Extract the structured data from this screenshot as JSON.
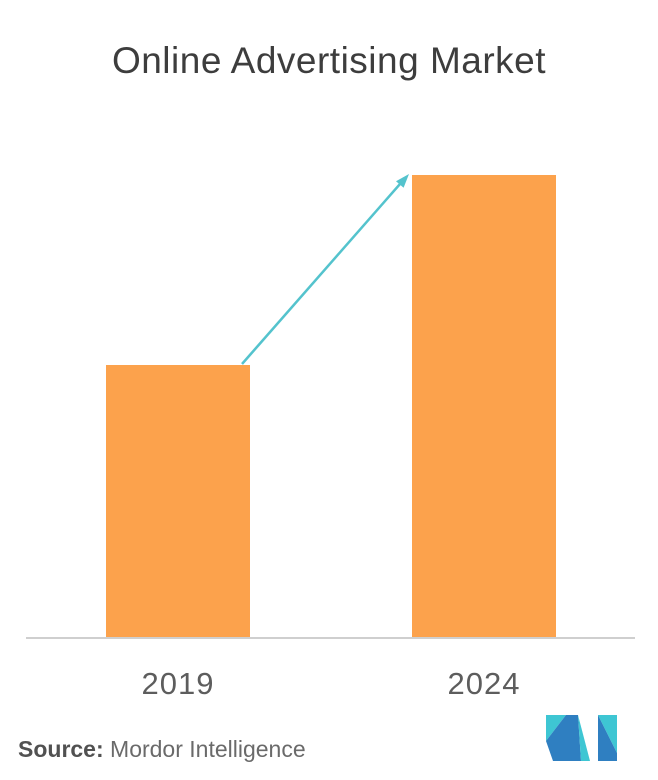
{
  "title": "Online Advertising Market",
  "source": {
    "label": "Source:",
    "text": " Mordor Intelligence"
  },
  "colors": {
    "bar": "#FCA24C",
    "arrow": "#54C3CD",
    "axis_line": "#CFCFCF",
    "title_text": "#3D3D3D",
    "label_text": "#5D5D5D",
    "logo_teal": "#3EC6D3",
    "logo_blue": "#2F7FC1"
  },
  "chart_data": {
    "type": "bar",
    "title": "Online Advertising Market",
    "categories": [
      "2019",
      "2024"
    ],
    "values": [
      0.59,
      1.0
    ],
    "value_scale": "relative bar height (no numeric axis or data labels shown)",
    "xlabel": "",
    "ylabel": "",
    "grid": false,
    "legend": false,
    "annotations": [
      "growth arrow drawn from top of 2019 bar to top of 2024 bar"
    ]
  },
  "logo": {
    "name": "Mordor Intelligence monogram"
  }
}
